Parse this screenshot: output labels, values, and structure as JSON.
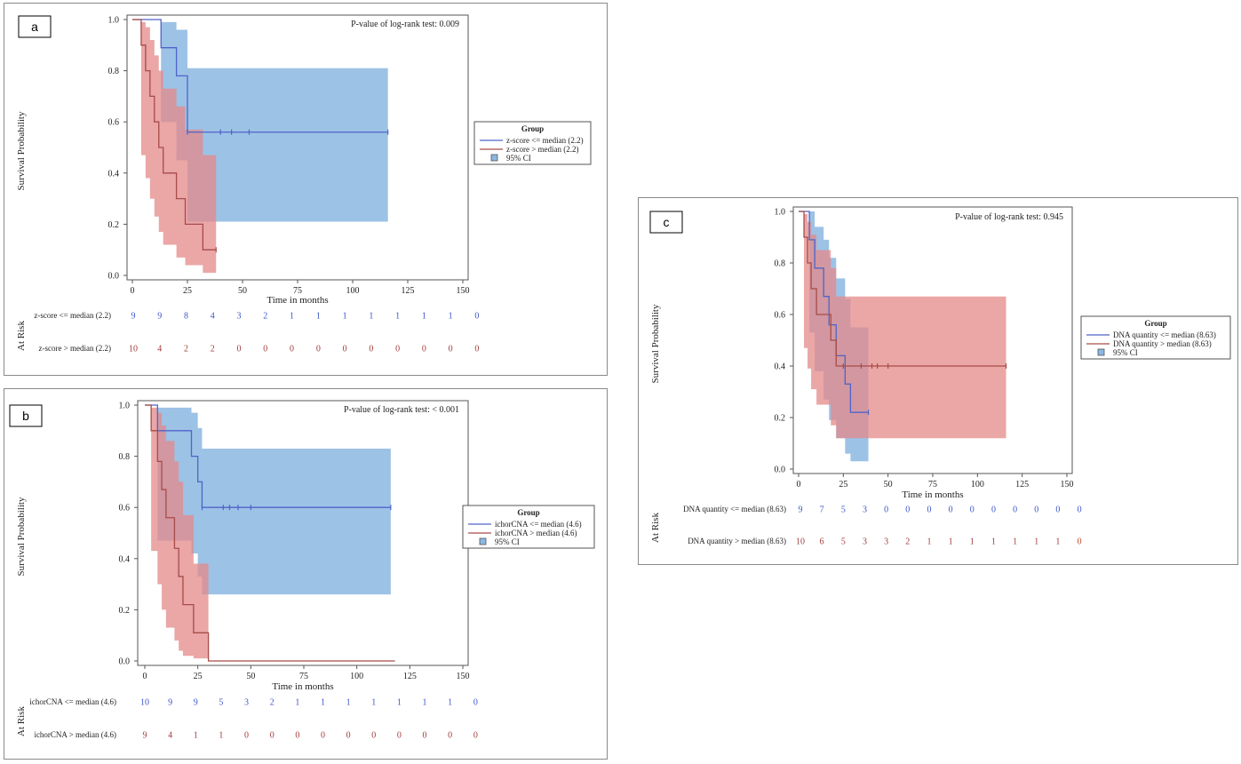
{
  "colors": {
    "blue_line": "#4f64c8",
    "red_line": "#a64c48",
    "blue_band": "#8bb7e2",
    "red_band": "#e48888",
    "blue_num": "#3b55c9",
    "red_num": "#a13b3b"
  },
  "chart_data": [
    {
      "type": "line",
      "panel": "a",
      "xlabel": "Time in months",
      "ylabel": "Survival Probability",
      "xlim": [
        0,
        150
      ],
      "ylim": [
        0,
        1
      ],
      "xticks": [
        "0",
        "25",
        "50",
        "75",
        "100",
        "125",
        "150"
      ],
      "yticks": [
        "0.0",
        "0.2",
        "0.4",
        "0.6",
        "0.8",
        "1.0"
      ],
      "pvalue": "P-value of log-rank test:  0.009",
      "legend_title": "Group",
      "ci_label": "95% CI",
      "at_risk_label": "At Risk",
      "series": [
        {
          "name": "z-score <= median (2.2)",
          "color": "blue",
          "steps": [
            [
              0,
              1.0
            ],
            [
              13,
              0.89
            ],
            [
              20,
              0.78
            ],
            [
              25,
              0.56
            ],
            [
              116,
              0.56
            ]
          ],
          "ci_upper": [
            [
              0,
              1.0
            ],
            [
              13,
              0.99
            ],
            [
              20,
              0.96
            ],
            [
              25,
              0.81
            ],
            [
              116,
              0.81
            ]
          ],
          "ci_lower": [
            [
              0,
              1.0
            ],
            [
              13,
              0.6
            ],
            [
              20,
              0.45
            ],
            [
              25,
              0.21
            ],
            [
              116,
              0.21
            ]
          ],
          "censor": [
            25,
            40,
            45,
            53,
            116
          ],
          "at_risk": [
            "9",
            "9",
            "8",
            "4",
            "3",
            "2",
            "1",
            "1",
            "1",
            "1",
            "1",
            "1",
            "1",
            "0"
          ]
        },
        {
          "name": "z-score > median (2.2)",
          "color": "red",
          "steps": [
            [
              0,
              1.0
            ],
            [
              4,
              0.9
            ],
            [
              6,
              0.8
            ],
            [
              8,
              0.7
            ],
            [
              10,
              0.6
            ],
            [
              12,
              0.5
            ],
            [
              14,
              0.4
            ],
            [
              20,
              0.3
            ],
            [
              24,
              0.2
            ],
            [
              32,
              0.1
            ],
            [
              38,
              0.1
            ]
          ],
          "ci_upper": [
            [
              0,
              1.0
            ],
            [
              4,
              0.99
            ],
            [
              6,
              0.97
            ],
            [
              8,
              0.92
            ],
            [
              10,
              0.86
            ],
            [
              12,
              0.8
            ],
            [
              14,
              0.73
            ],
            [
              20,
              0.66
            ],
            [
              24,
              0.57
            ],
            [
              32,
              0.47
            ],
            [
              38,
              0.47
            ]
          ],
          "ci_lower": [
            [
              0,
              1.0
            ],
            [
              4,
              0.47
            ],
            [
              6,
              0.38
            ],
            [
              8,
              0.3
            ],
            [
              10,
              0.23
            ],
            [
              12,
              0.17
            ],
            [
              14,
              0.12
            ],
            [
              20,
              0.07
            ],
            [
              24,
              0.04
            ],
            [
              32,
              0.01
            ],
            [
              38,
              0.01
            ]
          ],
          "censor": [
            38
          ],
          "at_risk": [
            "10",
            "4",
            "2",
            "2",
            "0",
            "0",
            "0",
            "0",
            "0",
            "0",
            "0",
            "0",
            "0",
            "0"
          ]
        }
      ]
    },
    {
      "type": "line",
      "panel": "b",
      "xlabel": "Time in months",
      "ylabel": "Survival Probability",
      "xlim": [
        0,
        150
      ],
      "ylim": [
        0,
        1
      ],
      "xticks": [
        "0",
        "25",
        "50",
        "75",
        "100",
        "125",
        "150"
      ],
      "yticks": [
        "0.0",
        "0.2",
        "0.4",
        "0.6",
        "0.8",
        "1.0"
      ],
      "pvalue": "P-value of log-rank test:  < 0.001",
      "legend_title": "Group",
      "ci_label": "95% CI",
      "at_risk_label": "At Risk",
      "series": [
        {
          "name": "ichorCNA <= median (4.6)",
          "color": "blue",
          "steps": [
            [
              0,
              1.0
            ],
            [
              6,
              0.9
            ],
            [
              22,
              0.8
            ],
            [
              25,
              0.7
            ],
            [
              27,
              0.6
            ],
            [
              116,
              0.6
            ]
          ],
          "ci_upper": [
            [
              0,
              1.0
            ],
            [
              6,
              0.99
            ],
            [
              22,
              0.97
            ],
            [
              25,
              0.91
            ],
            [
              27,
              0.83
            ],
            [
              116,
              0.83
            ]
          ],
          "ci_lower": [
            [
              0,
              1.0
            ],
            [
              6,
              0.47
            ],
            [
              22,
              0.42
            ],
            [
              25,
              0.33
            ],
            [
              27,
              0.26
            ],
            [
              116,
              0.26
            ]
          ],
          "censor": [
            27,
            37,
            40,
            44,
            50,
            116
          ],
          "at_risk": [
            "10",
            "9",
            "9",
            "5",
            "3",
            "2",
            "1",
            "1",
            "1",
            "1",
            "1",
            "1",
            "1",
            "0"
          ]
        },
        {
          "name": "ichorCNA > median (4.6)",
          "color": "red",
          "steps": [
            [
              0,
              1.0
            ],
            [
              3,
              0.9
            ],
            [
              6,
              0.78
            ],
            [
              8,
              0.67
            ],
            [
              10,
              0.56
            ],
            [
              14,
              0.44
            ],
            [
              16,
              0.33
            ],
            [
              18,
              0.22
            ],
            [
              23,
              0.11
            ],
            [
              30,
              0.0
            ],
            [
              118,
              0.0
            ]
          ],
          "ci_upper": [
            [
              0,
              1.0
            ],
            [
              3,
              0.99
            ],
            [
              6,
              0.97
            ],
            [
              8,
              0.92
            ],
            [
              10,
              0.86
            ],
            [
              14,
              0.78
            ],
            [
              16,
              0.7
            ],
            [
              18,
              0.57
            ],
            [
              23,
              0.38
            ],
            [
              30,
              0.0
            ]
          ],
          "ci_lower": [
            [
              0,
              1.0
            ],
            [
              3,
              0.43
            ],
            [
              6,
              0.3
            ],
            [
              8,
              0.2
            ],
            [
              10,
              0.13
            ],
            [
              14,
              0.08
            ],
            [
              16,
              0.04
            ],
            [
              18,
              0.02
            ],
            [
              23,
              0.01
            ],
            [
              30,
              0.0
            ]
          ],
          "censor": [],
          "at_risk": [
            "9",
            "4",
            "1",
            "1",
            "0",
            "0",
            "0",
            "0",
            "0",
            "0",
            "0",
            "0",
            "0",
            "0"
          ]
        }
      ]
    },
    {
      "type": "line",
      "panel": "c",
      "xlabel": "Time in months",
      "ylabel": "Survival Probability",
      "xlim": [
        0,
        150
      ],
      "ylim": [
        0,
        1
      ],
      "xticks": [
        "0",
        "25",
        "50",
        "75",
        "100",
        "125",
        "150"
      ],
      "yticks": [
        "0.0",
        "0.2",
        "0.4",
        "0.6",
        "0.8",
        "1.0"
      ],
      "pvalue": "P-value of log-rank test:  0.945",
      "legend_title": "Group",
      "ci_label": "95% CI",
      "at_risk_label": "At Risk",
      "series": [
        {
          "name": "DNA quantity <= median (8.63)",
          "color": "blue",
          "steps": [
            [
              0,
              1.0
            ],
            [
              6,
              0.89
            ],
            [
              9,
              0.78
            ],
            [
              14,
              0.67
            ],
            [
              17,
              0.56
            ],
            [
              21,
              0.44
            ],
            [
              26,
              0.33
            ],
            [
              29,
              0.22
            ],
            [
              39,
              0.22
            ]
          ],
          "ci_upper": [
            [
              0,
              1.0
            ],
            [
              6,
              1.0
            ],
            [
              9,
              0.94
            ],
            [
              14,
              0.89
            ],
            [
              17,
              0.82
            ],
            [
              21,
              0.74
            ],
            [
              26,
              0.66
            ],
            [
              29,
              0.55
            ],
            [
              39,
              0.55
            ]
          ],
          "ci_lower": [
            [
              0,
              1.0
            ],
            [
              6,
              0.53
            ],
            [
              9,
              0.38
            ],
            [
              14,
              0.27
            ],
            [
              17,
              0.19
            ],
            [
              21,
              0.12
            ],
            [
              26,
              0.06
            ],
            [
              29,
              0.03
            ],
            [
              39,
              0.03
            ]
          ],
          "censor": [
            39
          ],
          "at_risk": [
            "9",
            "7",
            "5",
            "3",
            "0",
            "0",
            "0",
            "0",
            "0",
            "0",
            "0",
            "0",
            "0",
            "0"
          ]
        },
        {
          "name": "DNA quantity > median (8.63)",
          "color": "red",
          "steps": [
            [
              0,
              1.0
            ],
            [
              3,
              0.9
            ],
            [
              5,
              0.8
            ],
            [
              7,
              0.7
            ],
            [
              10,
              0.6
            ],
            [
              18,
              0.5
            ],
            [
              21,
              0.4
            ],
            [
              116,
              0.4
            ]
          ],
          "ci_upper": [
            [
              0,
              1.0
            ],
            [
              3,
              0.99
            ],
            [
              5,
              0.96
            ],
            [
              7,
              0.91
            ],
            [
              10,
              0.85
            ],
            [
              18,
              0.78
            ],
            [
              21,
              0.67
            ],
            [
              116,
              0.67
            ]
          ],
          "ci_lower": [
            [
              0,
              1.0
            ],
            [
              3,
              0.47
            ],
            [
              5,
              0.39
            ],
            [
              7,
              0.31
            ],
            [
              10,
              0.25
            ],
            [
              18,
              0.17
            ],
            [
              21,
              0.12
            ],
            [
              116,
              0.12
            ]
          ],
          "censor": [
            25,
            35,
            41,
            44,
            50,
            116
          ],
          "at_risk": [
            "10",
            "6",
            "5",
            "3",
            "3",
            "2",
            "1",
            "1",
            "1",
            "1",
            "1",
            "1",
            "1",
            "0"
          ]
        }
      ]
    }
  ]
}
